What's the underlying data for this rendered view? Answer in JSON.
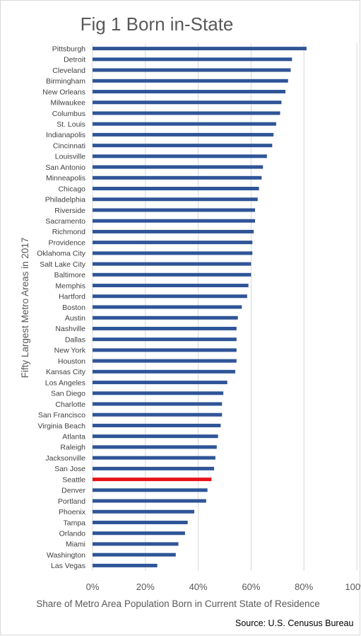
{
  "chart_data": {
    "type": "bar",
    "orientation": "horizontal",
    "title": "Fig 1 Born in-State",
    "xlabel": "Share of Metro Area Population Born in Current State of Residence",
    "ylabel": "Fifty Largest Metro Areas in 2017",
    "source": "Source: U.S. Cenusus Bureau",
    "xlim": [
      0,
      100
    ],
    "x_ticks": [
      "0%",
      "20%",
      "40%",
      "60%",
      "80%",
      "100%"
    ],
    "grid": "vertical",
    "bar_color": "#2f5597",
    "highlight_color": "#e8141a",
    "highlight_category": "Seattle",
    "categories": [
      "Pittsburgh",
      "Detroit",
      "Cleveland",
      "Birmingham",
      "New Orleans",
      "Milwaukee",
      "Columbus",
      "St. Louis",
      "Indianapolis",
      "Cincinnati",
      "Louisville",
      "San Antonio",
      "Minneapolis",
      "Chicago",
      "Philadelphia",
      "Riverside",
      "Sacramento",
      "Richmond",
      "Providence",
      "Oklahoma City",
      "Salt Lake City",
      "Baltimore",
      "Memphis",
      "Hartford",
      "Boston",
      "Austin",
      "Nashville",
      "Dallas",
      "New York",
      "Houston",
      "Kansas City",
      "Los Angeles",
      "San Diego",
      "Charlotte",
      "San Francisco",
      "Virginia Beach",
      "Atlanta",
      "Raleigh",
      "Jacksonville",
      "San Jose",
      "Seattle",
      "Denver",
      "Portland",
      "Phoenix",
      "Tampa",
      "Orlando",
      "Miami",
      "Washington",
      "Las Vegas"
    ],
    "values": [
      81,
      75.5,
      75,
      74,
      73,
      71.5,
      71,
      69.5,
      68.5,
      68,
      66,
      64.5,
      64,
      63,
      62.5,
      61.5,
      61.5,
      61,
      60.5,
      60.5,
      60,
      60,
      59,
      58.5,
      56.5,
      55,
      54.5,
      54.5,
      54.5,
      54.5,
      54,
      51,
      49.5,
      49,
      49,
      48.5,
      47.5,
      47,
      46.5,
      46,
      45,
      43.5,
      43,
      38.5,
      36,
      35,
      32.5,
      31.5,
      24.5
    ]
  }
}
